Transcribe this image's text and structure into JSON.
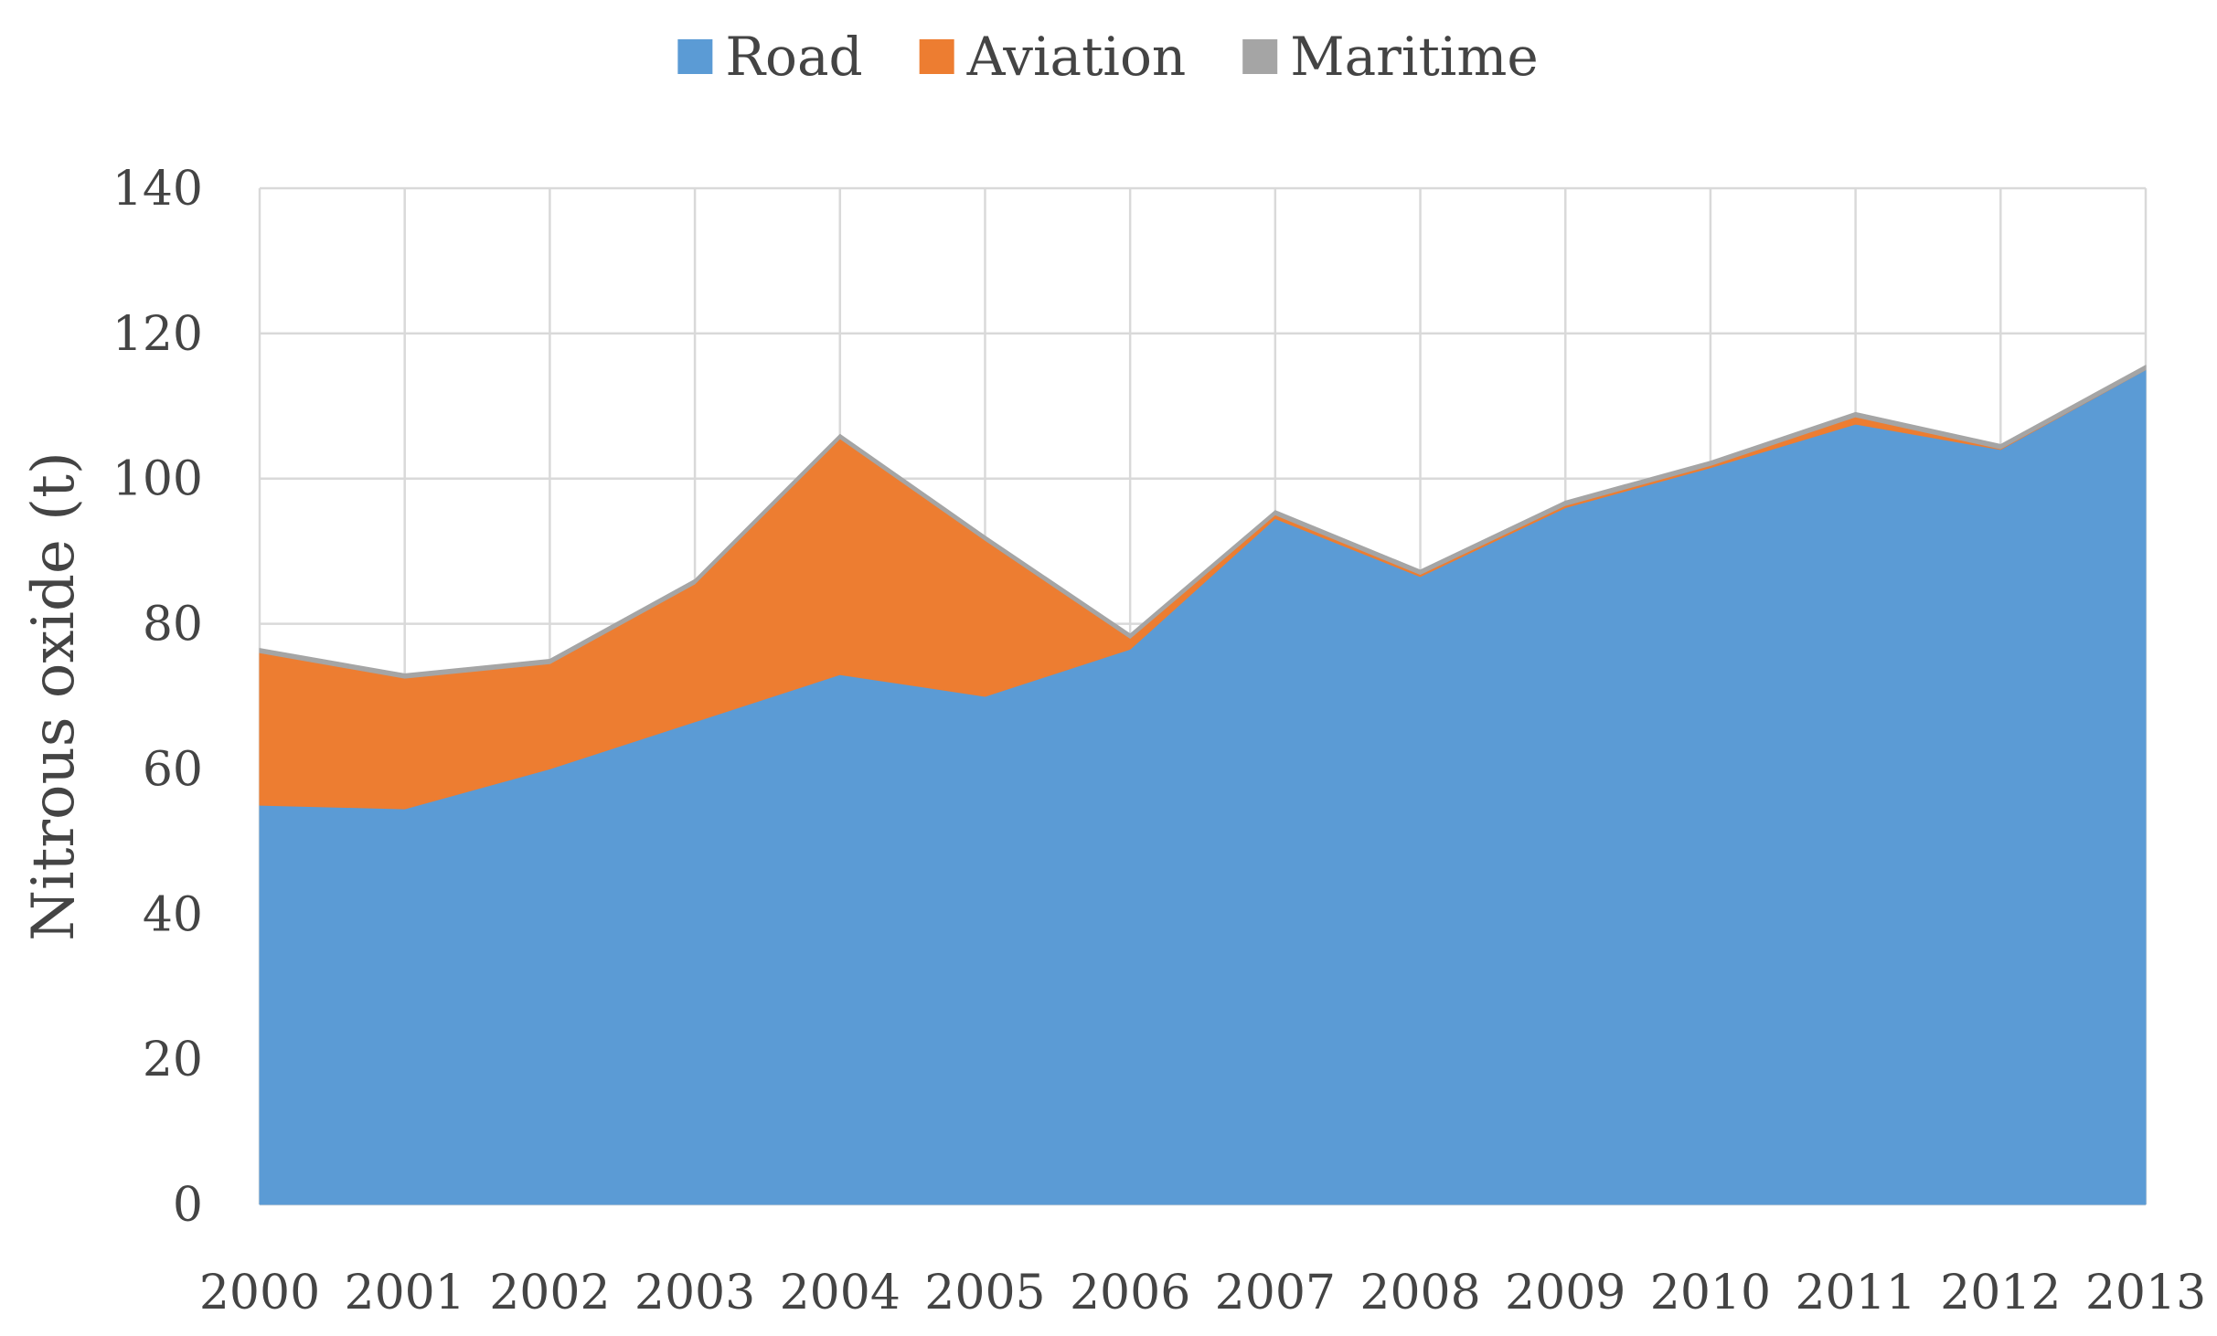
{
  "chart_data": {
    "type": "area",
    "stacked": true,
    "title": "",
    "xlabel": "",
    "ylabel": "Nitrous oxide (t)",
    "ylim": [
      0,
      140
    ],
    "yticks": [
      0,
      20,
      40,
      60,
      80,
      100,
      120,
      140
    ],
    "grid": true,
    "legend_position": "top-center",
    "categories": [
      "2000",
      "2001",
      "2002",
      "2003",
      "2004",
      "2005",
      "2006",
      "2007",
      "2008",
      "2009",
      "2010",
      "2011",
      "2012",
      "2013"
    ],
    "series": [
      {
        "name": "Road",
        "color": "#5B9BD5",
        "values": [
          55,
          54.5,
          60,
          66.5,
          73,
          70,
          76.5,
          94.5,
          86.5,
          96,
          101.5,
          107.5,
          104,
          115
        ]
      },
      {
        "name": "Aviation",
        "color": "#ED7D31",
        "values": [
          21,
          18,
          14.5,
          19,
          32.5,
          21.5,
          1.5,
          0.5,
          0.3,
          0.3,
          0.3,
          1,
          0.1,
          0
        ]
      },
      {
        "name": "Maritime",
        "color": "#A5A5A5",
        "values": [
          0.6,
          0.6,
          0.6,
          0.6,
          0.6,
          0.6,
          0.6,
          0.6,
          0.6,
          0.6,
          0.6,
          0.6,
          0.6,
          0.6
        ]
      }
    ]
  }
}
